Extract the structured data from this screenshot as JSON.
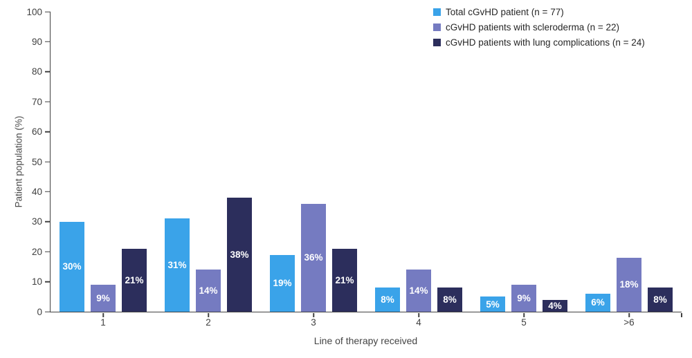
{
  "chart_data": {
    "type": "bar",
    "title": "",
    "xlabel": "Line of therapy received",
    "ylabel": "Patient population (%)",
    "ylim": [
      0,
      100
    ],
    "ytick_step": 10,
    "grid": false,
    "legend_position": "top-right",
    "data_label_format": "{v}%",
    "axis_color": "#404040",
    "categories": [
      "1",
      "2",
      "3",
      "4",
      "5",
      ">6"
    ],
    "series": [
      {
        "name": "Total cGvHD patient",
        "legend_label": "Total cGvHD patient (n = 77)",
        "color": "#3AA3E9",
        "values": [
          30,
          31,
          19,
          8,
          5,
          6
        ]
      },
      {
        "name": "cGvHD patients with scleroderma",
        "legend_label": "cGvHD patients with scleroderma (n = 22)",
        "color": "#757BC1",
        "values": [
          9,
          14,
          36,
          14,
          9,
          18
        ]
      },
      {
        "name": "cGvHD patients with lung complications",
        "legend_label": "cGvHD patients with lung complications (n = 24)",
        "color": "#2C2E5C",
        "values": [
          21,
          38,
          21,
          8,
          4,
          8
        ]
      }
    ]
  }
}
